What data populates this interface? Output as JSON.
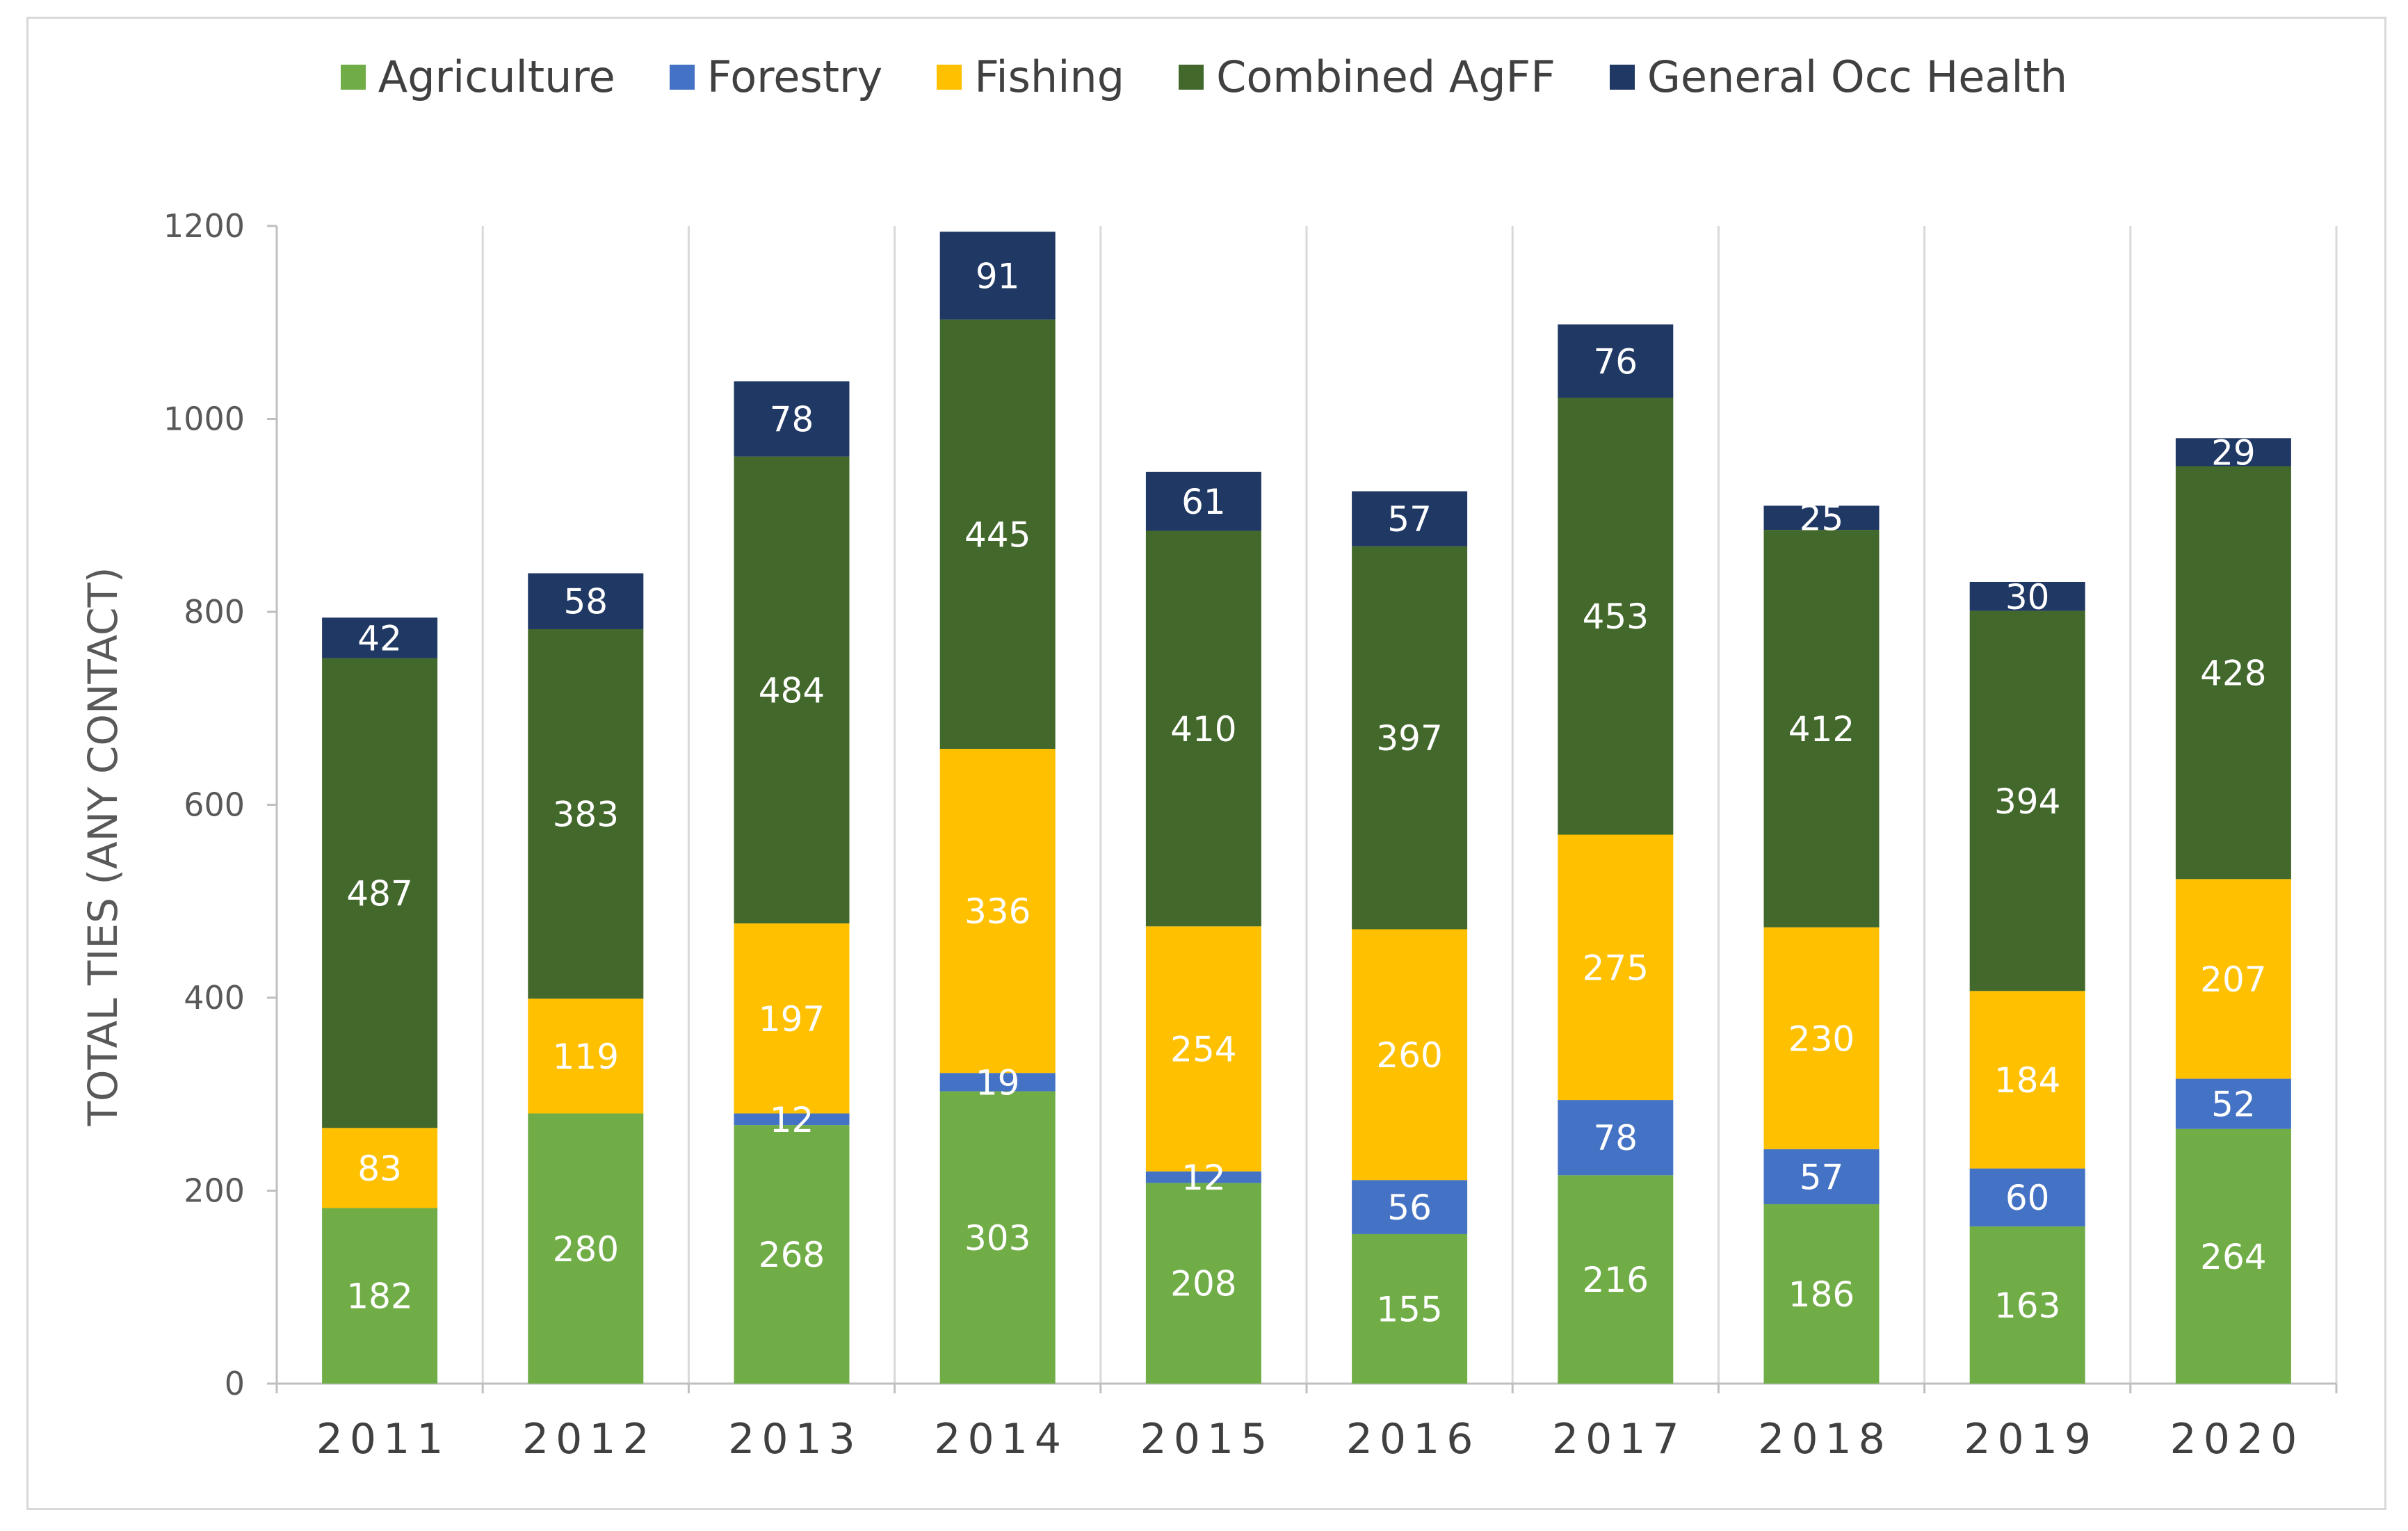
{
  "chart_data": {
    "type": "bar",
    "stacked": true,
    "categories": [
      "2011",
      "2012",
      "2013",
      "2014",
      "2015",
      "2016",
      "2017",
      "2018",
      "2019",
      "2020"
    ],
    "series": [
      {
        "name": "Agriculture",
        "color": "#70ad47",
        "values": [
          182,
          280,
          268,
          303,
          208,
          155,
          216,
          186,
          163,
          264
        ]
      },
      {
        "name": "Forestry",
        "color": "#4472c4",
        "values": [
          0,
          0,
          12,
          19,
          12,
          56,
          78,
          57,
          60,
          52
        ]
      },
      {
        "name": "Fishing",
        "color": "#ffc000",
        "values": [
          83,
          119,
          197,
          336,
          254,
          260,
          275,
          230,
          184,
          207
        ]
      },
      {
        "name": "Combined AgFF",
        "color": "#43682b",
        "values": [
          487,
          383,
          484,
          445,
          410,
          397,
          453,
          412,
          394,
          428
        ]
      },
      {
        "name": "General Occ Health",
        "color": "#203864",
        "values": [
          42,
          58,
          78,
          91,
          61,
          57,
          76,
          25,
          30,
          29
        ]
      }
    ],
    "title": "",
    "xlabel": "",
    "ylabel": "TOTAL TIES (ANY CONTACT)",
    "ylim": [
      0,
      1200
    ],
    "yticks": [
      0,
      200,
      400,
      600,
      800,
      1000,
      1200
    ],
    "grid": "vertical separators between categories",
    "legend_position": "top-center"
  }
}
